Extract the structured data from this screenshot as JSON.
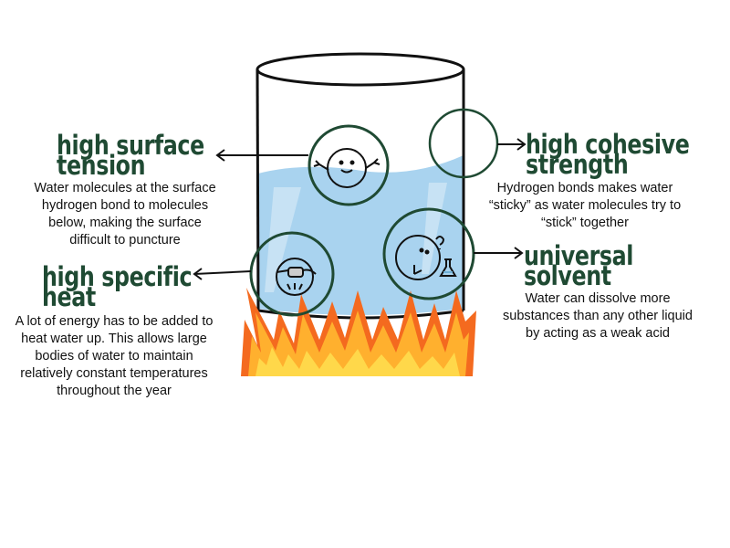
{
  "colors": {
    "title": "#1f4a33",
    "body_text": "#111111",
    "circle_outline": "#1f4a33",
    "water": "#a9d3ef",
    "flame_outer": "#f46a1f",
    "flame_mid": "#ffb02e",
    "flame_inner": "#ffd84a"
  },
  "properties": {
    "surface_tension": {
      "title_lines": [
        "high surface",
        "tension"
      ],
      "desc_lines": [
        "Water molecules at the surface",
        "hydrogen bond to molecules",
        "below, making the surface",
        "difficult to puncture"
      ]
    },
    "cohesive_strength": {
      "title_lines": [
        "high cohesive",
        "strength"
      ],
      "desc_lines": [
        "Hydrogen bonds makes water",
        "“sticky” as water molecules try to",
        "“stick” together"
      ]
    },
    "specific_heat": {
      "title_lines": [
        "high specific",
        "heat"
      ],
      "desc_lines": [
        "A lot of energy has to be added to",
        "heat water up. This allows large",
        "bodies of water to maintain",
        "relatively constant temperatures",
        "throughout the year"
      ]
    },
    "universal_solvent": {
      "title_lines": [
        "universal",
        "solvent"
      ],
      "desc_lines": [
        "Water can dissolve more",
        "substances than any other liquid",
        "by acting as a weak acid"
      ]
    }
  },
  "icons": {
    "surface_tension": "happy-molecule-icon",
    "cohesive_strength": "empty-circle-icon",
    "specific_heat": "snorkel-molecule-icon",
    "universal_solvent": "flask-molecule-icon"
  }
}
